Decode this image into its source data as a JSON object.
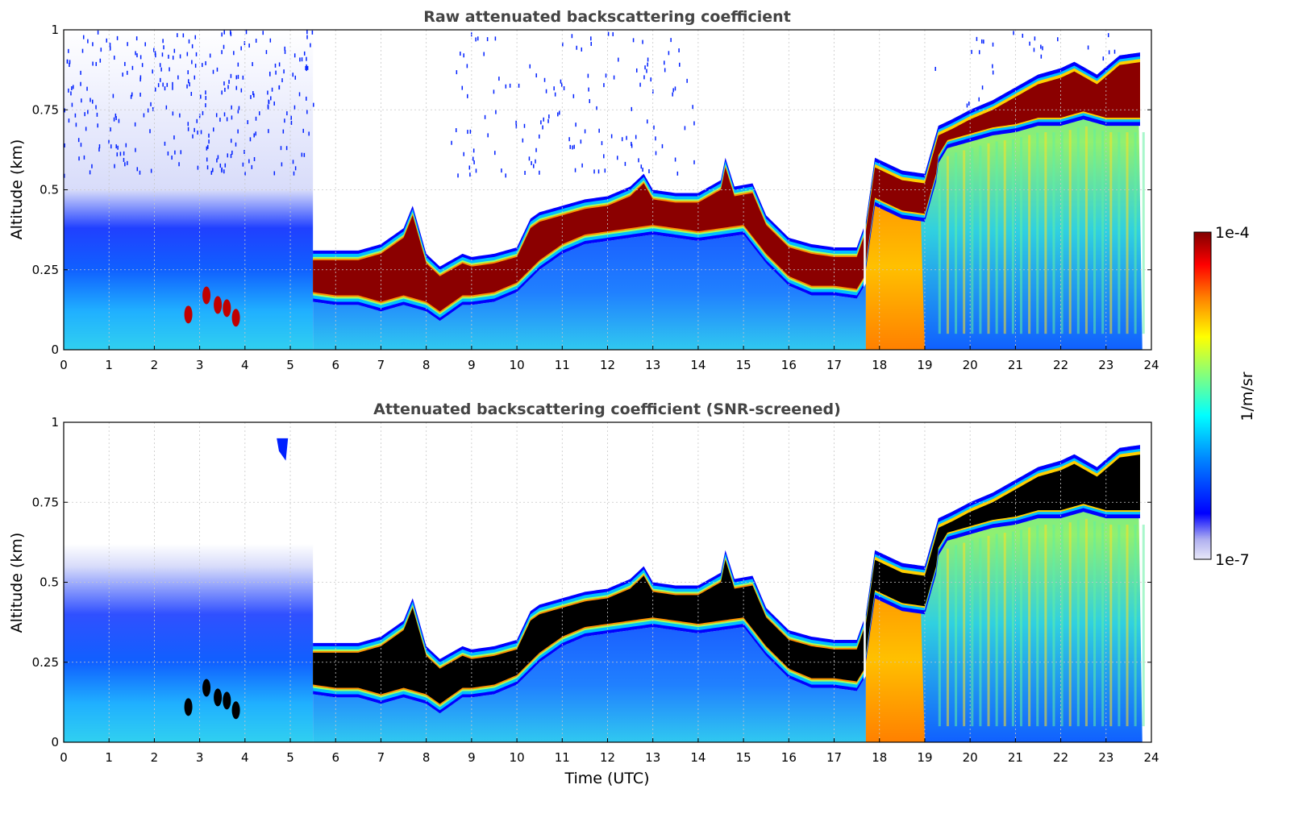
{
  "colors": {
    "jet_stops": [
      "#e8e8f8",
      "#b0b0f0",
      "#0000ff",
      "#0080ff",
      "#00ffff",
      "#80ff80",
      "#ffff00",
      "#ff8000",
      "#ff0000",
      "#800000"
    ],
    "screened_saturation": "#000000",
    "grid": "#c8c8c8",
    "background": "#ffffff"
  },
  "chart_data": [
    {
      "type": "heatmap",
      "title": "Raw attenuated backscattering coefficient",
      "xlabel": "",
      "ylabel": "Altitude (km)",
      "xlim": [
        0,
        24
      ],
      "ylim": [
        0,
        1
      ],
      "xticks": [
        "0",
        "1",
        "2",
        "3",
        "4",
        "5",
        "6",
        "7",
        "8",
        "9",
        "10",
        "11",
        "12",
        "13",
        "14",
        "15",
        "16",
        "17",
        "18",
        "19",
        "20",
        "21",
        "22",
        "23",
        "24"
      ],
      "yticks": [
        "0",
        "0.25",
        "0.5",
        "0.75",
        "1"
      ],
      "grid": true,
      "colorscale": "log",
      "layer_top_km": [
        [
          5.5,
          0.31
        ],
        [
          6,
          0.31
        ],
        [
          6.5,
          0.31
        ],
        [
          7,
          0.33
        ],
        [
          7.5,
          0.38
        ],
        [
          7.7,
          0.45
        ],
        [
          8,
          0.3
        ],
        [
          8.3,
          0.26
        ],
        [
          8.8,
          0.3
        ],
        [
          9,
          0.29
        ],
        [
          9.5,
          0.3
        ],
        [
          10,
          0.32
        ],
        [
          10.3,
          0.41
        ],
        [
          10.5,
          0.43
        ],
        [
          11,
          0.45
        ],
        [
          11.5,
          0.47
        ],
        [
          12,
          0.48
        ],
        [
          12.5,
          0.51
        ],
        [
          12.8,
          0.55
        ],
        [
          13,
          0.5
        ],
        [
          13.5,
          0.49
        ],
        [
          14,
          0.49
        ],
        [
          14.5,
          0.53
        ],
        [
          14.6,
          0.6
        ],
        [
          14.8,
          0.51
        ],
        [
          15.2,
          0.52
        ],
        [
          15.5,
          0.42
        ],
        [
          16,
          0.35
        ],
        [
          16.5,
          0.33
        ],
        [
          17,
          0.32
        ],
        [
          17.5,
          0.32
        ],
        [
          17.7,
          0.4
        ],
        [
          17.9,
          0.6
        ],
        [
          18.2,
          0.58
        ],
        [
          18.5,
          0.56
        ],
        [
          19,
          0.55
        ],
        [
          19.3,
          0.7
        ],
        [
          19.6,
          0.72
        ],
        [
          20,
          0.75
        ],
        [
          20.5,
          0.78
        ],
        [
          21,
          0.82
        ],
        [
          21.5,
          0.86
        ],
        [
          22,
          0.88
        ],
        [
          22.3,
          0.9
        ],
        [
          22.8,
          0.86
        ],
        [
          23.3,
          0.92
        ],
        [
          23.8,
          0.93
        ]
      ],
      "layer_base_km": [
        [
          5.5,
          0.15
        ],
        [
          6,
          0.14
        ],
        [
          6.5,
          0.14
        ],
        [
          7,
          0.12
        ],
        [
          7.5,
          0.14
        ],
        [
          8,
          0.12
        ],
        [
          8.3,
          0.09
        ],
        [
          8.8,
          0.14
        ],
        [
          9,
          0.14
        ],
        [
          9.5,
          0.15
        ],
        [
          10,
          0.18
        ],
        [
          10.5,
          0.25
        ],
        [
          11,
          0.3
        ],
        [
          11.5,
          0.33
        ],
        [
          12,
          0.34
        ],
        [
          12.5,
          0.35
        ],
        [
          13,
          0.36
        ],
        [
          13.5,
          0.35
        ],
        [
          14,
          0.34
        ],
        [
          14.5,
          0.35
        ],
        [
          15,
          0.36
        ],
        [
          15.5,
          0.27
        ],
        [
          16,
          0.2
        ],
        [
          16.5,
          0.17
        ],
        [
          17,
          0.17
        ],
        [
          17.5,
          0.16
        ],
        [
          19.5,
          0.63
        ],
        [
          20,
          0.65
        ],
        [
          20.5,
          0.67
        ],
        [
          21,
          0.68
        ],
        [
          21.5,
          0.7
        ],
        [
          22,
          0.7
        ],
        [
          22.5,
          0.72
        ],
        [
          23,
          0.7
        ],
        [
          23.8,
          0.7
        ]
      ]
    },
    {
      "type": "heatmap",
      "title": "Attenuated backscattering coefficient (SNR-screened)",
      "xlabel": "Time (UTC)",
      "ylabel": "Altitude (km)",
      "xlim": [
        0,
        24
      ],
      "ylim": [
        0,
        1
      ],
      "xticks": [
        "0",
        "1",
        "2",
        "3",
        "4",
        "5",
        "6",
        "7",
        "8",
        "9",
        "10",
        "11",
        "12",
        "13",
        "14",
        "15",
        "16",
        "17",
        "18",
        "19",
        "20",
        "21",
        "22",
        "23",
        "24"
      ],
      "yticks": [
        "0",
        "0.25",
        "0.5",
        "0.75",
        "1"
      ],
      "grid": true,
      "colorscale": "log"
    }
  ],
  "colorbar": {
    "label": "1/m/sr",
    "max_label": "1e-4",
    "min_label": "1e-7"
  }
}
